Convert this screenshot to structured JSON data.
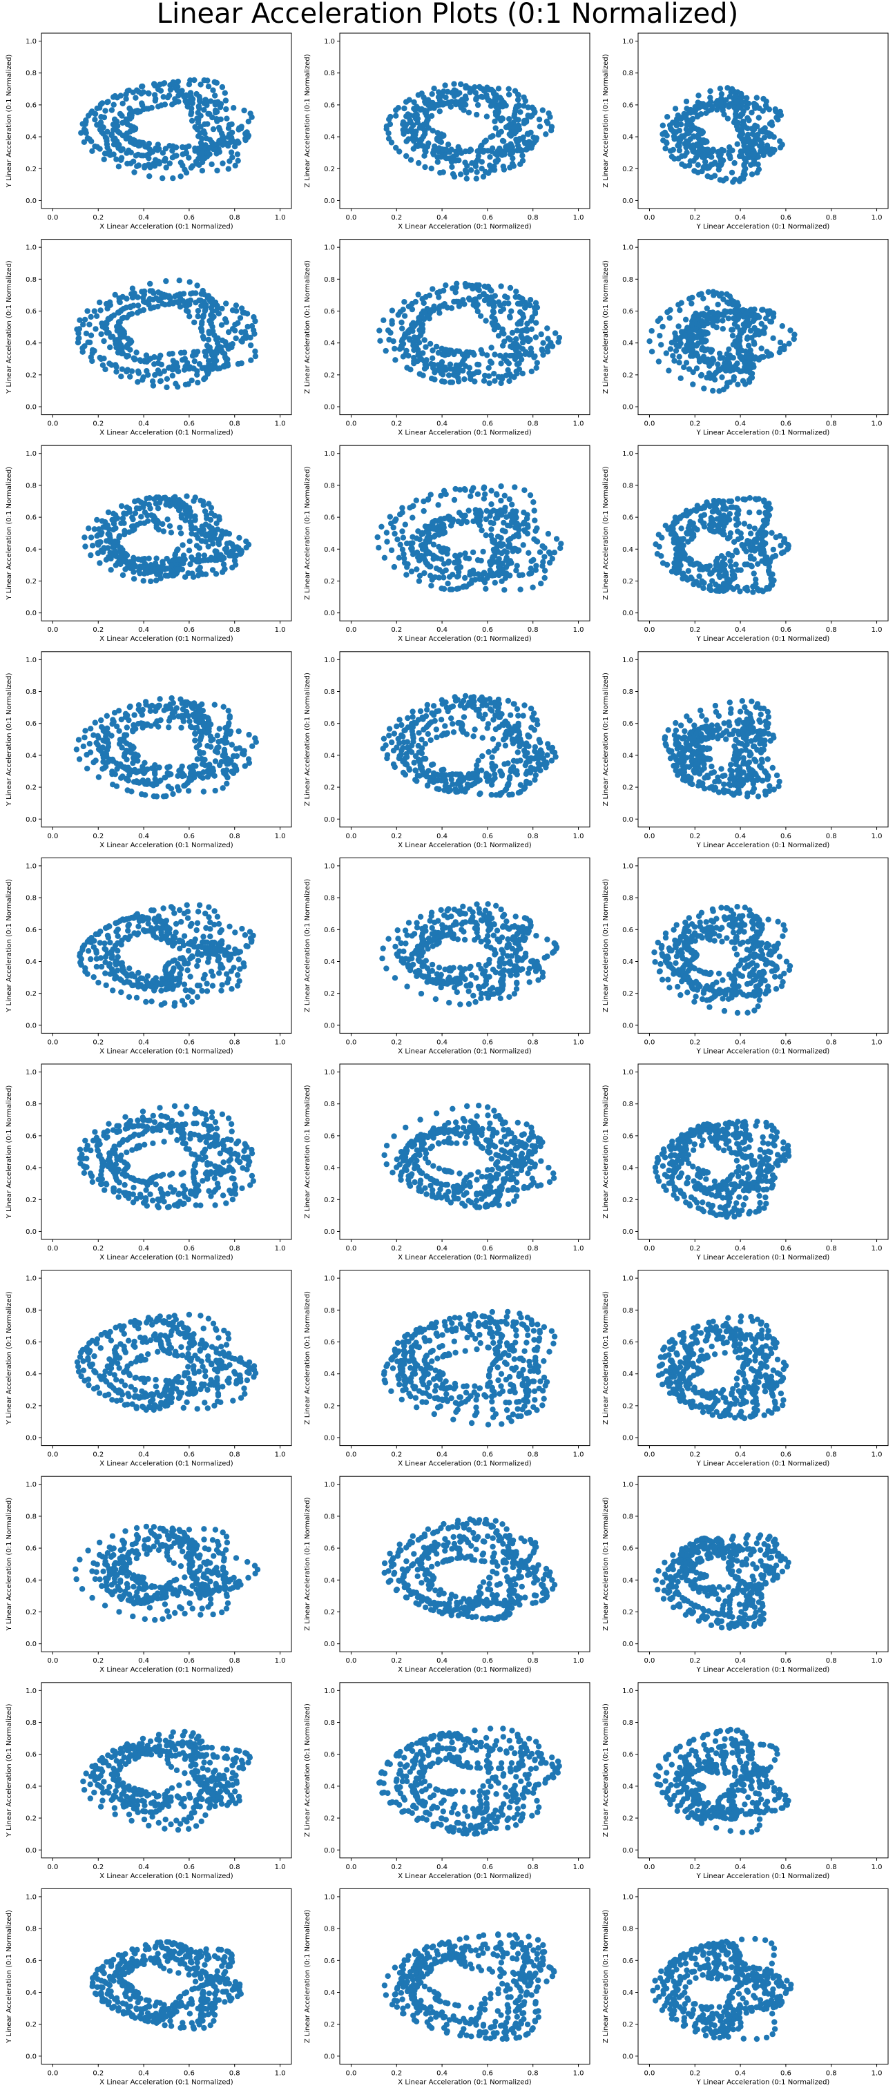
{
  "figure": {
    "title": "Linear Acceleration Plots (0:1 Normalized)"
  },
  "colors": {
    "marker": "#1f77b4",
    "frame": "#000000",
    "background": "#ffffff"
  },
  "chart_data": {
    "type": "scatter",
    "rows": 10,
    "cols": 3,
    "xlim": [
      -0.05,
      1.05
    ],
    "ylim": [
      -0.05,
      1.05
    ],
    "xticks": [
      "0.0",
      "0.2",
      "0.4",
      "0.6",
      "0.8",
      "1.0"
    ],
    "yticks": [
      "0.0",
      "0.2",
      "0.4",
      "0.6",
      "0.8",
      "1.0"
    ],
    "grid": false,
    "legend": "none",
    "column_axes": [
      {
        "xlabel": "X Linear Acceleration (0:1 Normalized)",
        "ylabel": "Y Linear Acceleration (0:1 Normalized)"
      },
      {
        "xlabel": "X Linear Acceleration (0:1 Normalized)",
        "ylabel": "Z Linear Acceleration (0:1 Normalized)"
      },
      {
        "xlabel": "Y Linear Acceleration (0:1 Normalized)",
        "ylabel": "Z Linear Acceleration (0:1 Normalized)"
      }
    ],
    "column_shapes": [
      {
        "cx": 0.5,
        "cy": 0.45,
        "rx": 0.34,
        "ry": 0.27
      },
      {
        "cx": 0.52,
        "cy": 0.45,
        "rx": 0.35,
        "ry": 0.3
      },
      {
        "cx": 0.32,
        "cy": 0.42,
        "rx": 0.25,
        "ry": 0.28
      }
    ],
    "paths_per_plot": 10,
    "points_per_path": 44
  }
}
